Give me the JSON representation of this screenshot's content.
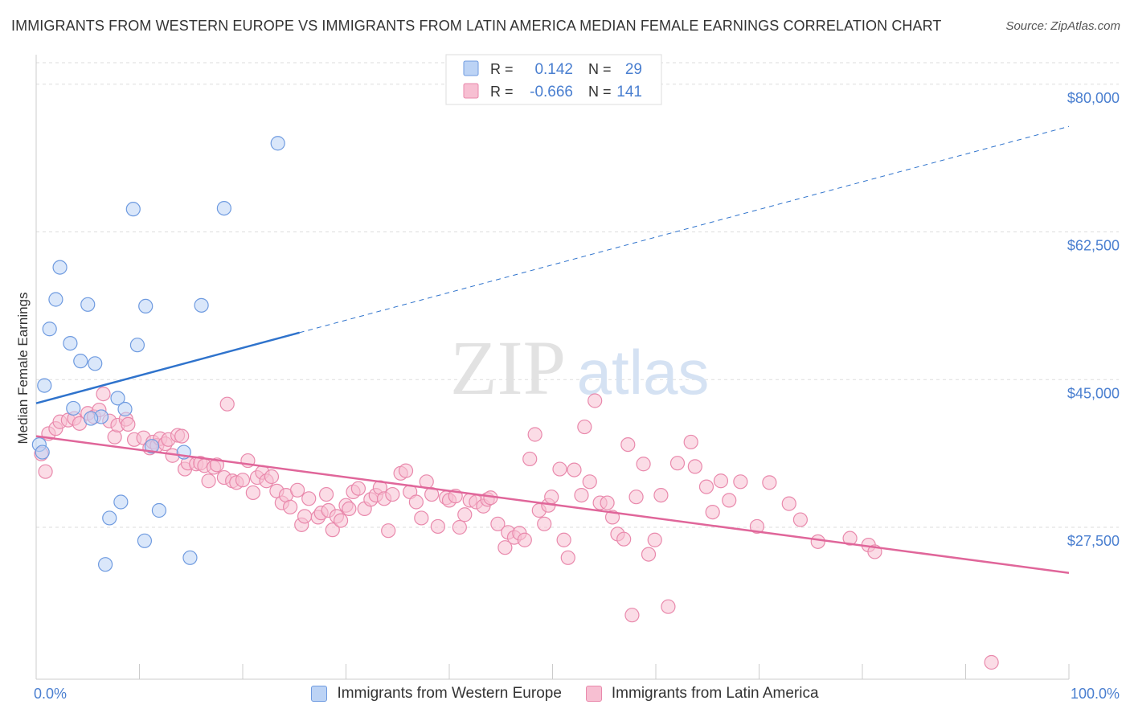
{
  "title": "IMMIGRANTS FROM WESTERN EUROPE VS IMMIGRANTS FROM LATIN AMERICA MEDIAN FEMALE EARNINGS CORRELATION CHART",
  "source": "Source: ZipAtlas.com",
  "watermark": {
    "zip": "ZIP",
    "atlas": "atlas"
  },
  "colors": {
    "blue_fill": "#bcd3f5",
    "blue_stroke": "#6f9be0",
    "blue_line": "#2f73cc",
    "pink_fill": "#f7bfd2",
    "pink_stroke": "#e989ac",
    "pink_line": "#e0669a",
    "value_text": "#4a7fd0",
    "grid": "#dddddd"
  },
  "legend": {
    "r_label": "R =",
    "n_label": "N =",
    "rows": [
      {
        "series": "blue",
        "r": "0.142",
        "n": "29"
      },
      {
        "series": "pink",
        "r": "-0.666",
        "n": "141"
      }
    ]
  },
  "chart_data": {
    "type": "scatter",
    "title": "IMMIGRANTS FROM WESTERN EUROPE VS IMMIGRANTS FROM LATIN AMERICA MEDIAN FEMALE EARNINGS CORRELATION CHART",
    "xlabel": "",
    "ylabel": "Median Female Earnings",
    "xlim": [
      0,
      100
    ],
    "ylim": [
      9500,
      83500
    ],
    "x_tick_labels": [
      "0.0%",
      "100.0%"
    ],
    "y_ticks": [
      {
        "value": 27500,
        "label": "$27,500"
      },
      {
        "value": 45000,
        "label": "$45,000"
      },
      {
        "value": 62500,
        "label": "$62,500"
      },
      {
        "value": 80000,
        "label": "$80,000"
      }
    ],
    "grid": true,
    "legend_position": "top-center",
    "series": [
      {
        "name": "Immigrants from Western Europe",
        "color": "blue",
        "r": 0.142,
        "n": 29,
        "trend": {
          "x0": 0,
          "y0": 42200,
          "x1": 100,
          "y1": 75000,
          "solid_until": 25.5
        },
        "points": [
          [
            23.4,
            73000
          ],
          [
            9.4,
            65200
          ],
          [
            18.2,
            65300
          ],
          [
            2.3,
            58300
          ],
          [
            1.9,
            54500
          ],
          [
            5.0,
            53900
          ],
          [
            10.6,
            53700
          ],
          [
            16.0,
            53800
          ],
          [
            1.3,
            51000
          ],
          [
            3.3,
            49300
          ],
          [
            9.8,
            49100
          ],
          [
            4.3,
            47200
          ],
          [
            5.7,
            46900
          ],
          [
            0.8,
            44300
          ],
          [
            7.9,
            42800
          ],
          [
            3.6,
            41600
          ],
          [
            8.6,
            41500
          ],
          [
            6.3,
            40600
          ],
          [
            5.3,
            40400
          ],
          [
            11.2,
            37100
          ],
          [
            0.3,
            37300
          ],
          [
            0.6,
            36400
          ],
          [
            14.3,
            36400
          ],
          [
            8.2,
            30500
          ],
          [
            11.9,
            29500
          ],
          [
            7.1,
            28600
          ],
          [
            10.5,
            25900
          ],
          [
            14.9,
            23900
          ],
          [
            6.7,
            23100
          ]
        ]
      },
      {
        "name": "Immigrants from Latin America",
        "color": "pink",
        "r": -0.666,
        "n": 141,
        "trend": {
          "x0": 0,
          "y0": 38300,
          "x1": 100,
          "y1": 22100
        },
        "points": [
          [
            0.5,
            36200
          ],
          [
            0.9,
            34100
          ],
          [
            1.2,
            38600
          ],
          [
            1.9,
            39200
          ],
          [
            2.3,
            40000
          ],
          [
            3.1,
            40200
          ],
          [
            3.7,
            40400
          ],
          [
            4.2,
            39800
          ],
          [
            5.0,
            41000
          ],
          [
            5.6,
            40600
          ],
          [
            6.1,
            41400
          ],
          [
            6.5,
            43300
          ],
          [
            7.1,
            40100
          ],
          [
            7.6,
            38200
          ],
          [
            7.9,
            39600
          ],
          [
            8.7,
            40300
          ],
          [
            8.9,
            39700
          ],
          [
            9.5,
            37900
          ],
          [
            10.4,
            38100
          ],
          [
            11.0,
            36900
          ],
          [
            11.3,
            37600
          ],
          [
            11.7,
            37200
          ],
          [
            12.0,
            38000
          ],
          [
            12.5,
            37400
          ],
          [
            12.8,
            37900
          ],
          [
            13.2,
            36000
          ],
          [
            13.7,
            38400
          ],
          [
            14.1,
            38300
          ],
          [
            14.4,
            34400
          ],
          [
            14.7,
            35100
          ],
          [
            15.5,
            35000
          ],
          [
            15.9,
            35100
          ],
          [
            16.3,
            34800
          ],
          [
            16.7,
            33000
          ],
          [
            17.2,
            34600
          ],
          [
            17.5,
            34900
          ],
          [
            18.2,
            33400
          ],
          [
            18.5,
            42100
          ],
          [
            19.0,
            33000
          ],
          [
            19.4,
            32800
          ],
          [
            20.0,
            33100
          ],
          [
            20.5,
            35400
          ],
          [
            21.0,
            31600
          ],
          [
            21.4,
            33400
          ],
          [
            21.9,
            34000
          ],
          [
            22.3,
            33000
          ],
          [
            22.8,
            33500
          ],
          [
            23.3,
            31800
          ],
          [
            23.8,
            30400
          ],
          [
            24.2,
            31300
          ],
          [
            24.6,
            29900
          ],
          [
            25.3,
            31900
          ],
          [
            25.7,
            27800
          ],
          [
            26.0,
            28800
          ],
          [
            26.4,
            30900
          ],
          [
            27.3,
            28700
          ],
          [
            27.6,
            29200
          ],
          [
            28.1,
            31400
          ],
          [
            28.3,
            29500
          ],
          [
            28.7,
            27200
          ],
          [
            29.1,
            28800
          ],
          [
            29.5,
            28300
          ],
          [
            30.0,
            30100
          ],
          [
            30.3,
            29700
          ],
          [
            30.7,
            31700
          ],
          [
            31.2,
            32100
          ],
          [
            31.8,
            29700
          ],
          [
            32.4,
            30800
          ],
          [
            32.9,
            31300
          ],
          [
            33.3,
            32200
          ],
          [
            33.7,
            30900
          ],
          [
            34.1,
            27100
          ],
          [
            34.5,
            31400
          ],
          [
            35.3,
            33900
          ],
          [
            35.8,
            34200
          ],
          [
            36.2,
            31700
          ],
          [
            36.8,
            30500
          ],
          [
            37.3,
            28600
          ],
          [
            37.8,
            32900
          ],
          [
            38.3,
            31400
          ],
          [
            38.9,
            27600
          ],
          [
            39.7,
            31000
          ],
          [
            40.0,
            30700
          ],
          [
            40.6,
            31200
          ],
          [
            41.0,
            27500
          ],
          [
            41.5,
            29000
          ],
          [
            42.0,
            30700
          ],
          [
            42.6,
            30500
          ],
          [
            43.3,
            30000
          ],
          [
            43.7,
            30800
          ],
          [
            44.0,
            31000
          ],
          [
            44.7,
            27900
          ],
          [
            45.4,
            25100
          ],
          [
            45.7,
            26900
          ],
          [
            46.3,
            26300
          ],
          [
            46.8,
            26800
          ],
          [
            47.3,
            26000
          ],
          [
            47.8,
            35600
          ],
          [
            48.3,
            38500
          ],
          [
            48.7,
            29500
          ],
          [
            49.2,
            27900
          ],
          [
            49.6,
            30100
          ],
          [
            49.9,
            31100
          ],
          [
            50.7,
            34400
          ],
          [
            51.1,
            26000
          ],
          [
            51.5,
            23900
          ],
          [
            52.1,
            34300
          ],
          [
            52.8,
            31300
          ],
          [
            53.1,
            39400
          ],
          [
            53.6,
            32900
          ],
          [
            54.1,
            42500
          ],
          [
            54.6,
            30400
          ],
          [
            55.3,
            30400
          ],
          [
            55.8,
            28700
          ],
          [
            56.3,
            26700
          ],
          [
            56.9,
            26100
          ],
          [
            57.3,
            37300
          ],
          [
            57.7,
            17100
          ],
          [
            58.1,
            31100
          ],
          [
            58.8,
            35000
          ],
          [
            59.3,
            24300
          ],
          [
            59.9,
            26000
          ],
          [
            60.5,
            31300
          ],
          [
            61.2,
            18100
          ],
          [
            62.1,
            35100
          ],
          [
            63.4,
            37600
          ],
          [
            63.8,
            34700
          ],
          [
            64.9,
            32300
          ],
          [
            65.5,
            29300
          ],
          [
            66.3,
            33000
          ],
          [
            67.1,
            30700
          ],
          [
            68.2,
            32900
          ],
          [
            69.8,
            27600
          ],
          [
            71.0,
            32800
          ],
          [
            72.9,
            30300
          ],
          [
            74.0,
            28400
          ],
          [
            75.7,
            25800
          ],
          [
            78.8,
            26200
          ],
          [
            80.6,
            25400
          ],
          [
            81.2,
            24600
          ],
          [
            92.5,
            11500
          ]
        ]
      }
    ]
  }
}
